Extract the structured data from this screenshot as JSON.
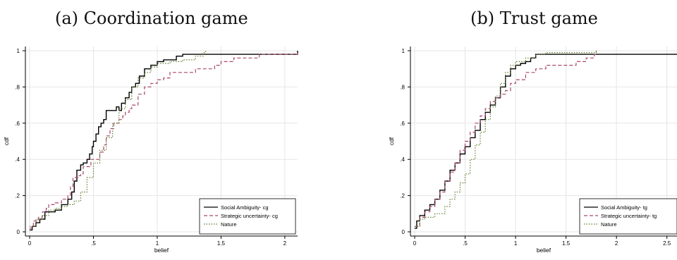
{
  "panels": {
    "a": {
      "title": "(a) Coordination game"
    },
    "b": {
      "title": "(b) Trust game"
    }
  },
  "chart_data": [
    {
      "type": "line",
      "step": true,
      "title": "(a) Coordination game",
      "xlabel": "belief",
      "ylabel": "cdf",
      "xlim": [
        0,
        2.1
      ],
      "ylim": [
        0,
        1
      ],
      "xticks": [
        0,
        0.5,
        1,
        1.5,
        2
      ],
      "xtick_labels": [
        "0",
        ".5",
        "1",
        "1.5",
        "2"
      ],
      "yticks": [
        0,
        0.2,
        0.4,
        0.6,
        0.8,
        1
      ],
      "ytick_labels": [
        "0",
        ".2",
        ".4",
        ".6",
        ".8",
        "1"
      ],
      "grid": true,
      "legend_position": "bottom-right",
      "series": [
        {
          "name": "Social Ambiguity- cg",
          "color": "#000000",
          "style": "solid",
          "points": [
            [
              0,
              0.01
            ],
            [
              0.02,
              0.03
            ],
            [
              0.05,
              0.05
            ],
            [
              0.08,
              0.07
            ],
            [
              0.12,
              0.11
            ],
            [
              0.2,
              0.12
            ],
            [
              0.25,
              0.15
            ],
            [
              0.3,
              0.18
            ],
            [
              0.33,
              0.22
            ],
            [
              0.35,
              0.28
            ],
            [
              0.37,
              0.34
            ],
            [
              0.4,
              0.37
            ],
            [
              0.42,
              0.38
            ],
            [
              0.45,
              0.4
            ],
            [
              0.47,
              0.43
            ],
            [
              0.49,
              0.47
            ],
            [
              0.5,
              0.5
            ],
            [
              0.52,
              0.54
            ],
            [
              0.54,
              0.58
            ],
            [
              0.56,
              0.6
            ],
            [
              0.58,
              0.62
            ],
            [
              0.6,
              0.67
            ],
            [
              0.68,
              0.69
            ],
            [
              0.7,
              0.67
            ],
            [
              0.72,
              0.71
            ],
            [
              0.75,
              0.74
            ],
            [
              0.78,
              0.77
            ],
            [
              0.8,
              0.8
            ],
            [
              0.83,
              0.82
            ],
            [
              0.86,
              0.86
            ],
            [
              0.9,
              0.9
            ],
            [
              0.95,
              0.92
            ],
            [
              1.0,
              0.94
            ],
            [
              1.05,
              0.95
            ],
            [
              1.15,
              0.97
            ],
            [
              1.2,
              0.98
            ],
            [
              1.35,
              0.98
            ],
            [
              1.6,
              0.98
            ],
            [
              2.08,
              0.98
            ],
            [
              2.1,
              1.0
            ]
          ]
        },
        {
          "name": "Strategic uncertainty- cg",
          "color": "#a8476e",
          "style": "dashed",
          "points": [
            [
              0,
              0.02
            ],
            [
              0.03,
              0.06
            ],
            [
              0.07,
              0.08
            ],
            [
              0.1,
              0.11
            ],
            [
              0.13,
              0.13
            ],
            [
              0.15,
              0.15
            ],
            [
              0.2,
              0.16
            ],
            [
              0.25,
              0.18
            ],
            [
              0.3,
              0.2
            ],
            [
              0.32,
              0.25
            ],
            [
              0.34,
              0.3
            ],
            [
              0.38,
              0.31
            ],
            [
              0.4,
              0.32
            ],
            [
              0.42,
              0.36
            ],
            [
              0.48,
              0.4
            ],
            [
              0.52,
              0.4
            ],
            [
              0.55,
              0.44
            ],
            [
              0.58,
              0.48
            ],
            [
              0.6,
              0.53
            ],
            [
              0.63,
              0.57
            ],
            [
              0.66,
              0.6
            ],
            [
              0.7,
              0.62
            ],
            [
              0.73,
              0.64
            ],
            [
              0.75,
              0.66
            ],
            [
              0.78,
              0.68
            ],
            [
              0.8,
              0.7
            ],
            [
              0.85,
              0.76
            ],
            [
              0.9,
              0.8
            ],
            [
              0.95,
              0.82
            ],
            [
              1.0,
              0.84
            ],
            [
              1.05,
              0.85
            ],
            [
              1.1,
              0.88
            ],
            [
              1.3,
              0.9
            ],
            [
              1.45,
              0.92
            ],
            [
              1.5,
              0.94
            ],
            [
              1.6,
              0.96
            ],
            [
              1.8,
              0.98
            ],
            [
              2.1,
              0.99
            ]
          ]
        },
        {
          "name": "Nature",
          "color": "#5d7d2b",
          "style": "dotted",
          "points": [
            [
              0,
              0.03
            ],
            [
              0.05,
              0.07
            ],
            [
              0.1,
              0.09
            ],
            [
              0.15,
              0.12
            ],
            [
              0.2,
              0.13
            ],
            [
              0.25,
              0.14
            ],
            [
              0.3,
              0.15
            ],
            [
              0.35,
              0.17
            ],
            [
              0.4,
              0.22
            ],
            [
              0.45,
              0.3
            ],
            [
              0.5,
              0.38
            ],
            [
              0.55,
              0.45
            ],
            [
              0.6,
              0.52
            ],
            [
              0.65,
              0.6
            ],
            [
              0.7,
              0.68
            ],
            [
              0.75,
              0.73
            ],
            [
              0.8,
              0.8
            ],
            [
              0.85,
              0.85
            ],
            [
              0.9,
              0.88
            ],
            [
              0.95,
              0.91
            ],
            [
              1.0,
              0.93
            ],
            [
              1.1,
              0.94
            ],
            [
              1.2,
              0.95
            ],
            [
              1.3,
              0.97
            ],
            [
              1.36,
              0.99
            ],
            [
              1.38,
              1.0
            ]
          ]
        }
      ]
    },
    {
      "type": "line",
      "step": true,
      "title": "(b) Trust game",
      "xlabel": "belief",
      "ylabel": "cdf",
      "xlim": [
        0,
        2.6
      ],
      "ylim": [
        0,
        1
      ],
      "xticks": [
        0,
        0.5,
        1,
        1.5,
        2,
        2.5
      ],
      "xtick_labels": [
        "0",
        ".5",
        "1",
        "1.5",
        "2",
        "2.5"
      ],
      "yticks": [
        0,
        0.2,
        0.4,
        0.6,
        0.8,
        1
      ],
      "ytick_labels": [
        "0",
        ".2",
        ".4",
        ".6",
        ".8",
        "1"
      ],
      "grid": true,
      "legend_position": "bottom-right",
      "series": [
        {
          "name": "Social Ambiguity- tg",
          "color": "#000000",
          "style": "solid",
          "points": [
            [
              0,
              0.02
            ],
            [
              0.02,
              0.06
            ],
            [
              0.05,
              0.09
            ],
            [
              0.1,
              0.12
            ],
            [
              0.15,
              0.15
            ],
            [
              0.2,
              0.18
            ],
            [
              0.25,
              0.23
            ],
            [
              0.3,
              0.28
            ],
            [
              0.35,
              0.34
            ],
            [
              0.4,
              0.38
            ],
            [
              0.45,
              0.43
            ],
            [
              0.5,
              0.47
            ],
            [
              0.55,
              0.52
            ],
            [
              0.6,
              0.56
            ],
            [
              0.65,
              0.62
            ],
            [
              0.7,
              0.66
            ],
            [
              0.75,
              0.7
            ],
            [
              0.8,
              0.74
            ],
            [
              0.85,
              0.8
            ],
            [
              0.9,
              0.86
            ],
            [
              0.95,
              0.9
            ],
            [
              1.0,
              0.92
            ],
            [
              1.05,
              0.93
            ],
            [
              1.1,
              0.94
            ],
            [
              1.15,
              0.96
            ],
            [
              1.2,
              0.98
            ],
            [
              1.3,
              0.98
            ],
            [
              1.7,
              0.98
            ],
            [
              2.6,
              0.98
            ]
          ]
        },
        {
          "name": "Strategic uncertainty- tg",
          "color": "#a8476e",
          "style": "dashed",
          "points": [
            [
              0,
              0.03
            ],
            [
              0.05,
              0.08
            ],
            [
              0.1,
              0.11
            ],
            [
              0.15,
              0.14
            ],
            [
              0.2,
              0.18
            ],
            [
              0.25,
              0.22
            ],
            [
              0.3,
              0.28
            ],
            [
              0.35,
              0.33
            ],
            [
              0.4,
              0.38
            ],
            [
              0.45,
              0.45
            ],
            [
              0.5,
              0.5
            ],
            [
              0.55,
              0.55
            ],
            [
              0.6,
              0.6
            ],
            [
              0.65,
              0.64
            ],
            [
              0.7,
              0.68
            ],
            [
              0.75,
              0.72
            ],
            [
              0.8,
              0.74
            ],
            [
              0.85,
              0.76
            ],
            [
              0.9,
              0.78
            ],
            [
              0.95,
              0.82
            ],
            [
              1.0,
              0.84
            ],
            [
              1.1,
              0.88
            ],
            [
              1.2,
              0.9
            ],
            [
              1.3,
              0.92
            ],
            [
              1.5,
              0.92
            ],
            [
              1.6,
              0.94
            ],
            [
              1.7,
              0.96
            ],
            [
              1.78,
              0.98
            ],
            [
              1.8,
              1.0
            ]
          ]
        },
        {
          "name": "Nature",
          "color": "#5d7d2b",
          "style": "dotted",
          "points": [
            [
              0,
              0.03
            ],
            [
              0.05,
              0.07
            ],
            [
              0.1,
              0.08
            ],
            [
              0.2,
              0.1
            ],
            [
              0.3,
              0.14
            ],
            [
              0.35,
              0.18
            ],
            [
              0.4,
              0.22
            ],
            [
              0.45,
              0.27
            ],
            [
              0.5,
              0.32
            ],
            [
              0.55,
              0.4
            ],
            [
              0.6,
              0.48
            ],
            [
              0.65,
              0.55
            ],
            [
              0.7,
              0.62
            ],
            [
              0.75,
              0.69
            ],
            [
              0.8,
              0.75
            ],
            [
              0.85,
              0.82
            ],
            [
              0.9,
              0.88
            ],
            [
              0.95,
              0.92
            ],
            [
              1.0,
              0.94
            ],
            [
              1.1,
              0.96
            ],
            [
              1.2,
              0.98
            ],
            [
              1.3,
              0.99
            ],
            [
              1.8,
              1.0
            ]
          ]
        }
      ]
    }
  ]
}
